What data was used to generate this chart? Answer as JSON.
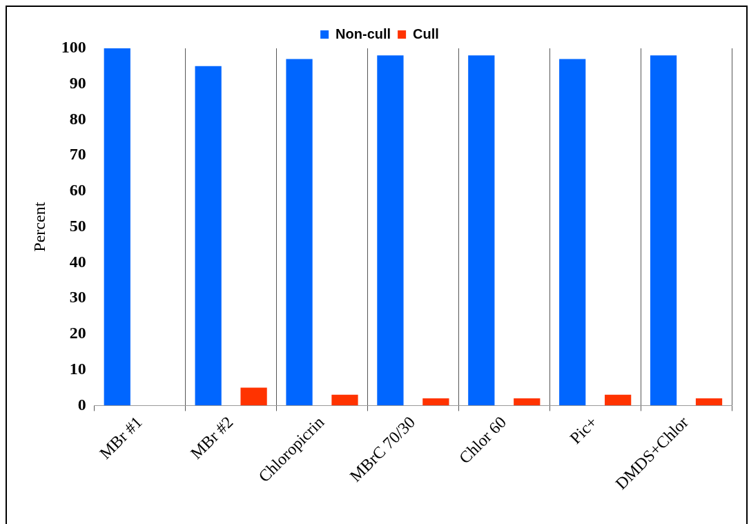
{
  "chart_data": {
    "type": "bar",
    "ylabel": "Percent",
    "categories": [
      "MBr #1",
      "MBr #2",
      "Chloropicrin",
      "MBrC 70/30",
      "Chlor 60",
      "Pic+",
      "DMDS+Chlor"
    ],
    "series": [
      {
        "name": "Non-cull",
        "color": "#0066ff",
        "values": [
          100,
          95,
          97,
          98,
          98,
          97,
          98
        ]
      },
      {
        "name": "Cull",
        "color": "#ff3300",
        "values": [
          0,
          5,
          3,
          2,
          2,
          3,
          2
        ]
      }
    ],
    "ylim": [
      0,
      100
    ],
    "yticks": [
      0,
      10,
      20,
      30,
      40,
      50,
      60,
      70,
      80,
      90,
      100
    ],
    "grid": "x",
    "legend": "top"
  }
}
